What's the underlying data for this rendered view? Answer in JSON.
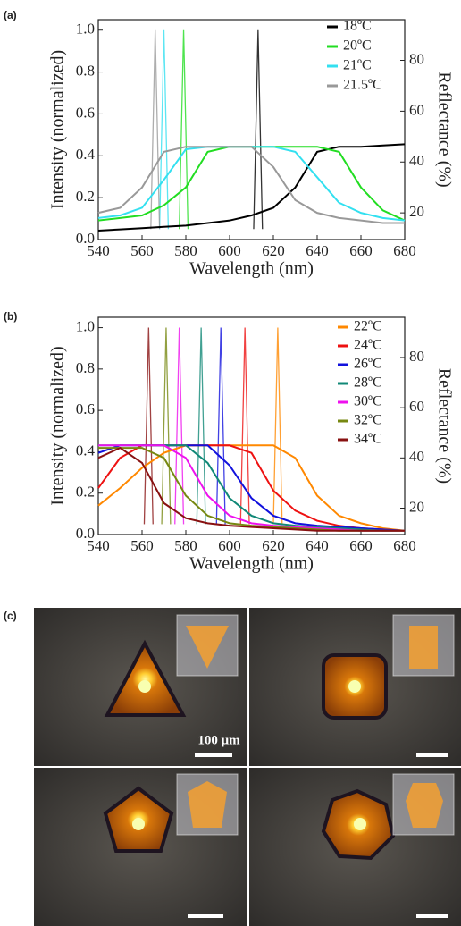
{
  "chart_data": [
    {
      "type": "line",
      "title": "(a)",
      "xlabel": "Wavelength (nm)",
      "ylabel": "Intensity (normalized)",
      "y2label": "Reflectance (%)",
      "xlim": [
        540,
        680
      ],
      "xticks": [
        540,
        560,
        580,
        600,
        620,
        640,
        660,
        680
      ],
      "ylim": [
        0,
        1.05
      ],
      "yticks": [
        {
          "value": 0,
          "label": "0.0"
        },
        0.2,
        0.4,
        0.6,
        0.8,
        {
          "value": 1,
          "label": "1.0"
        }
      ],
      "y2lim": [
        9.5,
        96
      ],
      "y2ticks": [
        20,
        40,
        60,
        80
      ],
      "series": [
        {
          "name": "18ºC",
          "color": "#000000",
          "axis": "y2",
          "x": [
            540,
            550,
            560,
            570,
            580,
            590,
            600,
            610,
            620,
            630,
            640,
            650,
            660,
            670,
            680
          ],
          "values": [
            13,
            13.5,
            14,
            14.5,
            15,
            16,
            17,
            19,
            22,
            30,
            44,
            46,
            46,
            46.5,
            47
          ],
          "emission": {
            "x": [
              611,
              613,
              615
            ],
            "values": [
              0.05,
              1.0,
              0.05
            ]
          }
        },
        {
          "name": "20ºC",
          "color": "#22dd22",
          "axis": "y2",
          "x": [
            540,
            550,
            560,
            570,
            580,
            590,
            600,
            610,
            620,
            630,
            640,
            650,
            660,
            670,
            680
          ],
          "values": [
            17,
            18,
            19,
            23,
            30,
            44,
            46,
            46,
            46,
            46,
            46,
            44,
            30,
            21,
            17
          ],
          "emission": {
            "x": [
              577,
              579,
              581
            ],
            "values": [
              0.05,
              1.0,
              0.05
            ]
          }
        },
        {
          "name": "21ºC",
          "color": "#33e0f0",
          "axis": "y2",
          "x": [
            540,
            550,
            560,
            570,
            580,
            590,
            600,
            610,
            620,
            630,
            640,
            650,
            660,
            670,
            680
          ],
          "values": [
            18,
            19,
            22,
            33,
            45,
            46,
            46,
            46,
            46,
            44,
            34,
            24,
            20,
            18,
            17
          ],
          "emission": {
            "x": [
              568,
              570,
              572
            ],
            "values": [
              0.05,
              1.0,
              0.05
            ]
          }
        },
        {
          "name": "21.5ºC",
          "color": "#999999",
          "axis": "y2",
          "x": [
            540,
            550,
            560,
            570,
            580,
            590,
            600,
            610,
            620,
            630,
            640,
            650,
            660,
            670,
            680
          ],
          "values": [
            20,
            22,
            30,
            44,
            46,
            46,
            46,
            46,
            38,
            25,
            20,
            18,
            17,
            16,
            16
          ],
          "emission": {
            "x": [
              564,
              566,
              568
            ],
            "values": [
              0.05,
              1.0,
              0.05
            ]
          }
        }
      ]
    },
    {
      "type": "line",
      "title": "(b)",
      "xlabel": "Wavelength (nm)",
      "ylabel": "Intensity (normalized)",
      "y2label": "Reflectance (%)",
      "xlim": [
        540,
        680
      ],
      "xticks": [
        540,
        560,
        580,
        600,
        620,
        640,
        660,
        680
      ],
      "ylim": [
        0,
        1.05
      ],
      "yticks": [
        {
          "value": 0,
          "label": "0.0"
        },
        0.2,
        0.4,
        0.6,
        0.8,
        {
          "value": 1,
          "label": "1.0"
        }
      ],
      "y2lim": [
        9.5,
        96
      ],
      "y2ticks": [
        20,
        40,
        60,
        80
      ],
      "series": [
        {
          "name": "22ºC",
          "color": "#ff8800",
          "axis": "y2",
          "x": [
            540,
            550,
            560,
            570,
            580,
            590,
            600,
            610,
            620,
            630,
            640,
            650,
            660,
            670,
            680
          ],
          "values": [
            21,
            28,
            36,
            42,
            45,
            45,
            45,
            45,
            45,
            40,
            25,
            17,
            14,
            12,
            11
          ],
          "emission": {
            "x": [
              620,
              622,
              624
            ],
            "values": [
              0.05,
              1.0,
              0.05
            ]
          }
        },
        {
          "name": "24ºC",
          "color": "#ee1111",
          "axis": "y2",
          "x": [
            540,
            550,
            560,
            570,
            580,
            590,
            600,
            610,
            620,
            630,
            640,
            650,
            660,
            670,
            680
          ],
          "values": [
            28,
            40,
            45,
            45,
            45,
            45,
            45,
            42,
            27,
            19,
            15,
            13,
            12,
            11.5,
            11
          ],
          "emission": {
            "x": [
              605,
              607,
              609
            ],
            "values": [
              0.05,
              1.0,
              0.05
            ]
          }
        },
        {
          "name": "26ºC",
          "color": "#1111dd",
          "axis": "y2",
          "x": [
            540,
            550,
            560,
            570,
            580,
            590,
            600,
            610,
            620,
            630,
            640,
            650,
            660,
            670,
            680
          ],
          "values": [
            42,
            45,
            45,
            45,
            45,
            45,
            37,
            24,
            17,
            14,
            13,
            12.5,
            12,
            11.5,
            11
          ],
          "emission": {
            "x": [
              594,
              596,
              598
            ],
            "values": [
              0.05,
              1.0,
              0.05
            ]
          }
        },
        {
          "name": "28ºC",
          "color": "#118877",
          "axis": "y2",
          "x": [
            540,
            550,
            560,
            570,
            580,
            590,
            600,
            610,
            620,
            630,
            640,
            650,
            660,
            670,
            680
          ],
          "values": [
            45,
            45,
            45,
            45,
            45,
            38,
            24,
            17,
            14,
            13,
            12.5,
            12,
            11.5,
            11,
            11
          ],
          "emission": {
            "x": [
              585,
              587,
              589
            ],
            "values": [
              0.05,
              1.0,
              0.05
            ]
          }
        },
        {
          "name": "30ºC",
          "color": "#ee11ee",
          "axis": "y2",
          "x": [
            540,
            550,
            560,
            570,
            580,
            590,
            600,
            610,
            620,
            630,
            640,
            650,
            660,
            670,
            680
          ],
          "values": [
            45,
            45,
            45,
            45,
            40,
            25,
            17,
            14,
            13,
            12.5,
            12,
            11.5,
            11,
            11,
            11
          ],
          "emission": {
            "x": [
              575,
              577,
              579
            ],
            "values": [
              0.05,
              1.0,
              0.05
            ]
          }
        },
        {
          "name": "32ºC",
          "color": "#778811",
          "axis": "y2",
          "x": [
            540,
            550,
            560,
            570,
            580,
            590,
            600,
            610,
            620,
            630,
            640,
            650,
            660,
            670,
            680
          ],
          "values": [
            44,
            44,
            44,
            40,
            25,
            17,
            14,
            13,
            12.5,
            12,
            11.5,
            11,
            11,
            11,
            11
          ],
          "emission": {
            "x": [
              569,
              571,
              573
            ],
            "values": [
              0.05,
              1.0,
              0.05
            ]
          }
        },
        {
          "name": "34ºC",
          "color": "#881111",
          "axis": "y2",
          "x": [
            540,
            550,
            560,
            570,
            580,
            590,
            600,
            610,
            620,
            630,
            640,
            650,
            660,
            670,
            680
          ],
          "values": [
            40,
            44,
            38,
            22,
            16,
            14,
            13,
            12.5,
            12,
            11.5,
            11,
            11,
            11,
            11,
            11
          ],
          "emission": {
            "x": [
              561,
              563,
              565
            ],
            "values": [
              0.05,
              1.0,
              0.05
            ]
          }
        }
      ]
    }
  ],
  "panel_c": {
    "label": "(c)",
    "scale_bar": "100 μm"
  }
}
